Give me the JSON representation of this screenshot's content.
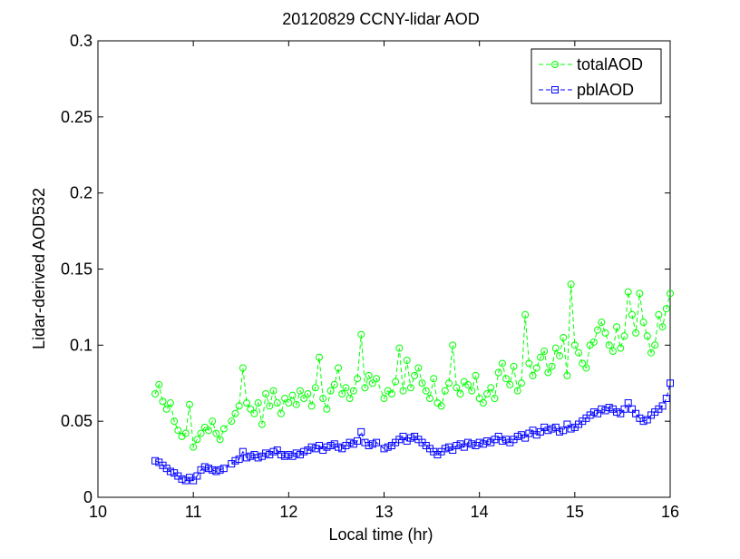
{
  "chart_data": {
    "type": "line",
    "title": "20120829 CCNY-lidar AOD",
    "xlabel": "Local time (hr)",
    "ylabel": "Lidar-derived AOD532",
    "xlim": [
      10,
      16
    ],
    "ylim": [
      0,
      0.3
    ],
    "xticks": [
      "10",
      "11",
      "12",
      "13",
      "14",
      "15",
      "16"
    ],
    "yticks": [
      "0",
      "0.05",
      "0.1",
      "0.15",
      "0.2",
      "0.25",
      "0.3"
    ],
    "xtick_values": [
      10,
      11,
      12,
      13,
      14,
      15,
      16
    ],
    "ytick_values": [
      0,
      0.05,
      0.1,
      0.15,
      0.2,
      0.25,
      0.3
    ],
    "grid": false,
    "legend_position": "top-right",
    "series": [
      {
        "name": "totalAOD",
        "color": "#00ff00",
        "marker": "circle",
        "line_style": "dashed",
        "x": [
          10.6,
          10.64,
          10.68,
          10.72,
          10.76,
          10.8,
          10.84,
          10.88,
          10.92,
          10.96,
          11.0,
          11.04,
          11.08,
          11.12,
          11.16,
          11.2,
          11.24,
          11.28,
          11.32,
          11.4,
          11.44,
          11.48,
          11.52,
          11.56,
          11.6,
          11.64,
          11.68,
          11.72,
          11.76,
          11.8,
          11.84,
          11.88,
          11.92,
          11.96,
          12.0,
          12.04,
          12.08,
          12.12,
          12.16,
          12.2,
          12.24,
          12.28,
          12.32,
          12.36,
          12.4,
          12.44,
          12.48,
          12.52,
          12.56,
          12.6,
          12.64,
          12.68,
          12.72,
          12.76,
          12.8,
          12.84,
          12.88,
          12.92,
          13.0,
          13.04,
          13.08,
          13.12,
          13.16,
          13.2,
          13.24,
          13.28,
          13.32,
          13.36,
          13.4,
          13.44,
          13.48,
          13.52,
          13.56,
          13.6,
          13.64,
          13.68,
          13.72,
          13.76,
          13.8,
          13.84,
          13.88,
          13.92,
          13.96,
          14.0,
          14.04,
          14.08,
          14.12,
          14.16,
          14.2,
          14.24,
          14.28,
          14.32,
          14.36,
          14.4,
          14.44,
          14.48,
          14.52,
          14.56,
          14.6,
          14.64,
          14.68,
          14.72,
          14.76,
          14.8,
          14.84,
          14.88,
          14.92,
          14.96,
          15.0,
          15.04,
          15.08,
          15.12,
          15.16,
          15.2,
          15.24,
          15.28,
          15.32,
          15.36,
          15.4,
          15.44,
          15.48,
          15.52,
          15.56,
          15.6,
          15.64,
          15.68,
          15.72,
          15.76,
          15.8,
          15.84,
          15.88,
          15.92,
          15.96,
          16.0
        ],
        "values": [
          0.068,
          0.074,
          0.063,
          0.058,
          0.062,
          0.05,
          0.044,
          0.04,
          0.042,
          0.061,
          0.033,
          0.038,
          0.042,
          0.046,
          0.044,
          0.05,
          0.042,
          0.038,
          0.045,
          0.05,
          0.055,
          0.06,
          0.085,
          0.062,
          0.058,
          0.055,
          0.062,
          0.048,
          0.068,
          0.06,
          0.07,
          0.062,
          0.055,
          0.065,
          0.062,
          0.067,
          0.061,
          0.07,
          0.065,
          0.068,
          0.06,
          0.072,
          0.092,
          0.065,
          0.058,
          0.07,
          0.074,
          0.085,
          0.068,
          0.072,
          0.065,
          0.07,
          0.078,
          0.107,
          0.072,
          0.08,
          0.075,
          0.078,
          0.065,
          0.07,
          0.068,
          0.076,
          0.098,
          0.07,
          0.09,
          0.072,
          0.08,
          0.085,
          0.075,
          0.07,
          0.065,
          0.078,
          0.062,
          0.06,
          0.07,
          0.075,
          0.1,
          0.072,
          0.068,
          0.076,
          0.074,
          0.07,
          0.08,
          0.065,
          0.062,
          0.068,
          0.072,
          0.065,
          0.082,
          0.088,
          0.078,
          0.074,
          0.086,
          0.07,
          0.075,
          0.12,
          0.088,
          0.08,
          0.085,
          0.092,
          0.096,
          0.082,
          0.086,
          0.098,
          0.093,
          0.105,
          0.08,
          0.14,
          0.1,
          0.095,
          0.088,
          0.085,
          0.1,
          0.102,
          0.11,
          0.115,
          0.108,
          0.1,
          0.096,
          0.112,
          0.098,
          0.106,
          0.135,
          0.12,
          0.108,
          0.134,
          0.115,
          0.106,
          0.095,
          0.1,
          0.12,
          0.112,
          0.124,
          0.134
        ]
      },
      {
        "name": "pblAOD",
        "color": "#0000ff",
        "marker": "square",
        "line_style": "dashed",
        "x": [
          10.6,
          10.64,
          10.68,
          10.72,
          10.76,
          10.8,
          10.84,
          10.88,
          10.92,
          10.96,
          11.0,
          11.04,
          11.08,
          11.12,
          11.16,
          11.2,
          11.24,
          11.28,
          11.32,
          11.4,
          11.44,
          11.48,
          11.52,
          11.56,
          11.6,
          11.64,
          11.68,
          11.72,
          11.76,
          11.8,
          11.84,
          11.88,
          11.92,
          11.96,
          12.0,
          12.04,
          12.08,
          12.12,
          12.16,
          12.2,
          12.24,
          12.28,
          12.32,
          12.36,
          12.4,
          12.44,
          12.48,
          12.52,
          12.56,
          12.6,
          12.64,
          12.68,
          12.72,
          12.76,
          12.8,
          12.84,
          12.88,
          12.92,
          13.0,
          13.04,
          13.08,
          13.12,
          13.16,
          13.2,
          13.24,
          13.28,
          13.32,
          13.36,
          13.4,
          13.44,
          13.48,
          13.52,
          13.56,
          13.6,
          13.64,
          13.68,
          13.72,
          13.76,
          13.8,
          13.84,
          13.88,
          13.92,
          13.96,
          14.0,
          14.04,
          14.08,
          14.12,
          14.16,
          14.2,
          14.24,
          14.28,
          14.32,
          14.36,
          14.4,
          14.44,
          14.48,
          14.52,
          14.56,
          14.6,
          14.64,
          14.68,
          14.72,
          14.76,
          14.8,
          14.84,
          14.88,
          14.92,
          14.96,
          15.0,
          15.04,
          15.08,
          15.12,
          15.16,
          15.2,
          15.24,
          15.28,
          15.32,
          15.36,
          15.4,
          15.44,
          15.48,
          15.52,
          15.56,
          15.6,
          15.64,
          15.68,
          15.72,
          15.76,
          15.8,
          15.84,
          15.88,
          15.92,
          15.96,
          16.0
        ],
        "values": [
          0.024,
          0.023,
          0.021,
          0.019,
          0.017,
          0.016,
          0.014,
          0.012,
          0.011,
          0.013,
          0.011,
          0.014,
          0.018,
          0.02,
          0.019,
          0.018,
          0.017,
          0.018,
          0.019,
          0.022,
          0.024,
          0.025,
          0.03,
          0.026,
          0.027,
          0.028,
          0.026,
          0.027,
          0.029,
          0.028,
          0.03,
          0.031,
          0.028,
          0.027,
          0.028,
          0.027,
          0.029,
          0.028,
          0.03,
          0.031,
          0.033,
          0.032,
          0.034,
          0.031,
          0.033,
          0.034,
          0.035,
          0.033,
          0.032,
          0.034,
          0.036,
          0.035,
          0.037,
          0.043,
          0.036,
          0.034,
          0.035,
          0.036,
          0.032,
          0.033,
          0.034,
          0.036,
          0.038,
          0.04,
          0.037,
          0.039,
          0.04,
          0.038,
          0.036,
          0.034,
          0.032,
          0.03,
          0.028,
          0.03,
          0.032,
          0.033,
          0.031,
          0.034,
          0.035,
          0.033,
          0.036,
          0.035,
          0.034,
          0.036,
          0.035,
          0.037,
          0.036,
          0.038,
          0.04,
          0.037,
          0.038,
          0.036,
          0.038,
          0.04,
          0.041,
          0.039,
          0.042,
          0.044,
          0.041,
          0.043,
          0.046,
          0.044,
          0.045,
          0.046,
          0.043,
          0.044,
          0.048,
          0.045,
          0.046,
          0.048,
          0.05,
          0.052,
          0.054,
          0.056,
          0.055,
          0.058,
          0.057,
          0.059,
          0.058,
          0.056,
          0.055,
          0.058,
          0.062,
          0.058,
          0.055,
          0.052,
          0.05,
          0.051,
          0.054,
          0.056,
          0.058,
          0.06,
          0.065,
          0.075
        ]
      }
    ]
  }
}
